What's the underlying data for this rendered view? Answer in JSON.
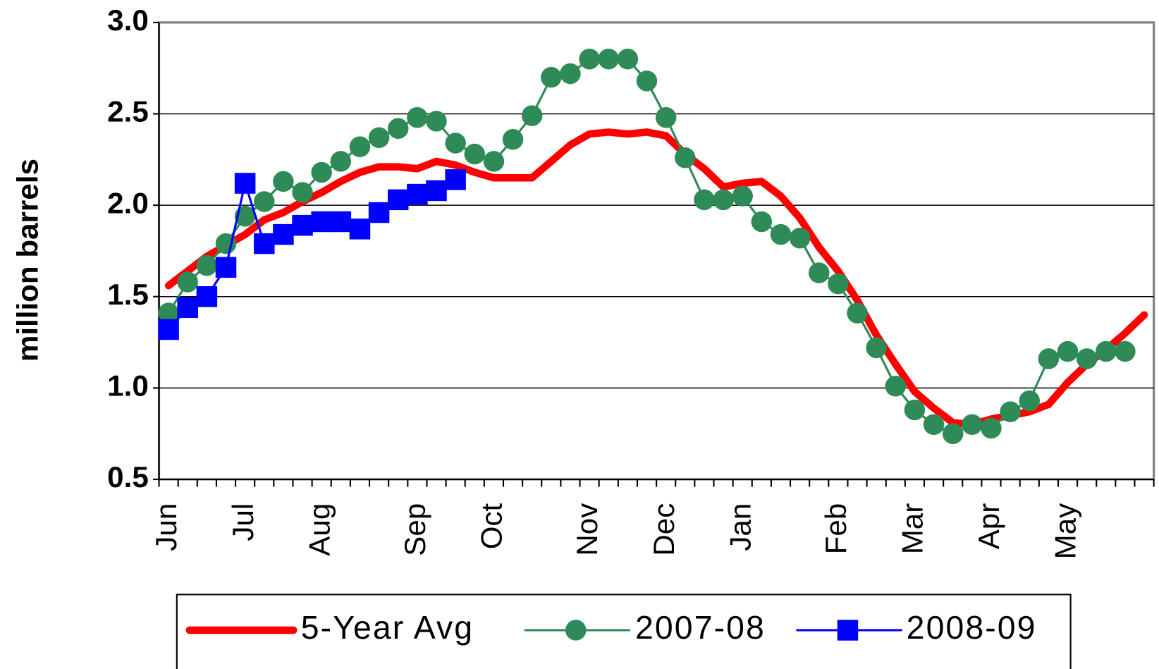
{
  "chart_data": {
    "type": "line",
    "y_label": "million barrels",
    "categories": [
      "Jun",
      null,
      null,
      null,
      "Jul",
      null,
      null,
      null,
      "Aug",
      null,
      null,
      null,
      null,
      "Sep",
      null,
      null,
      null,
      "Oct",
      null,
      null,
      null,
      null,
      "Nov",
      null,
      null,
      null,
      "Dec",
      null,
      null,
      null,
      "Jan",
      null,
      null,
      null,
      null,
      "Feb",
      null,
      null,
      null,
      "Mar",
      null,
      null,
      null,
      "Apr",
      null,
      null,
      null,
      "May",
      null,
      null,
      null,
      null
    ],
    "ylim": [
      0.5,
      3.0
    ],
    "yticks": [
      0.5,
      {
        "value": 1.0,
        "label": "1.0"
      },
      1.5,
      {
        "value": 2.0,
        "label": "2.0"
      },
      2.5,
      {
        "value": 3.0,
        "label": "3.0"
      }
    ],
    "grid": true,
    "series": [
      {
        "name": "5-Year Avg",
        "color": "#ff0000",
        "marker": "none",
        "values": [
          1.56,
          1.64,
          1.72,
          1.78,
          1.84,
          1.92,
          1.96,
          2.02,
          2.07,
          2.13,
          2.18,
          2.21,
          2.21,
          2.2,
          2.24,
          2.22,
          2.18,
          2.15,
          2.15,
          2.15,
          2.24,
          2.33,
          2.39,
          2.4,
          2.39,
          2.4,
          2.38,
          2.28,
          2.2,
          2.1,
          2.12,
          2.13,
          2.05,
          1.93,
          1.77,
          1.64,
          1.48,
          1.29,
          1.13,
          0.98,
          0.89,
          0.81,
          0.8,
          0.83,
          0.85,
          0.87,
          0.91,
          1.03,
          1.13,
          1.21,
          1.3,
          1.4
        ]
      },
      {
        "name": "2007-08",
        "color": "#2e8b57",
        "marker": "circle",
        "values": [
          1.41,
          1.58,
          1.67,
          1.79,
          1.94,
          2.02,
          2.13,
          2.07,
          2.18,
          2.24,
          2.32,
          2.37,
          2.42,
          2.48,
          2.46,
          2.34,
          2.28,
          2.24,
          2.36,
          2.49,
          2.7,
          2.72,
          2.8,
          2.8,
          2.8,
          2.68,
          2.48,
          2.26,
          2.03,
          2.03,
          2.05,
          1.91,
          1.84,
          1.82,
          1.63,
          1.57,
          1.41,
          1.22,
          1.01,
          0.88,
          0.8,
          0.75,
          0.8,
          0.78,
          0.87,
          0.93,
          1.16,
          1.2,
          1.16,
          1.2,
          1.2,
          null
        ]
      },
      {
        "name": "2008-09",
        "color": "#0000ff",
        "marker": "square",
        "values": [
          1.32,
          1.44,
          1.5,
          1.66,
          2.12,
          1.79,
          1.84,
          1.89,
          1.91,
          1.91,
          1.87,
          1.96,
          2.03,
          2.06,
          2.08,
          2.14,
          null,
          null,
          null,
          null,
          null,
          null,
          null,
          null,
          null,
          null,
          null,
          null,
          null,
          null,
          null,
          null,
          null,
          null,
          null,
          null,
          null,
          null,
          null,
          null,
          null,
          null,
          null,
          null,
          null,
          null,
          null,
          null,
          null,
          null,
          null,
          null
        ]
      }
    ]
  }
}
